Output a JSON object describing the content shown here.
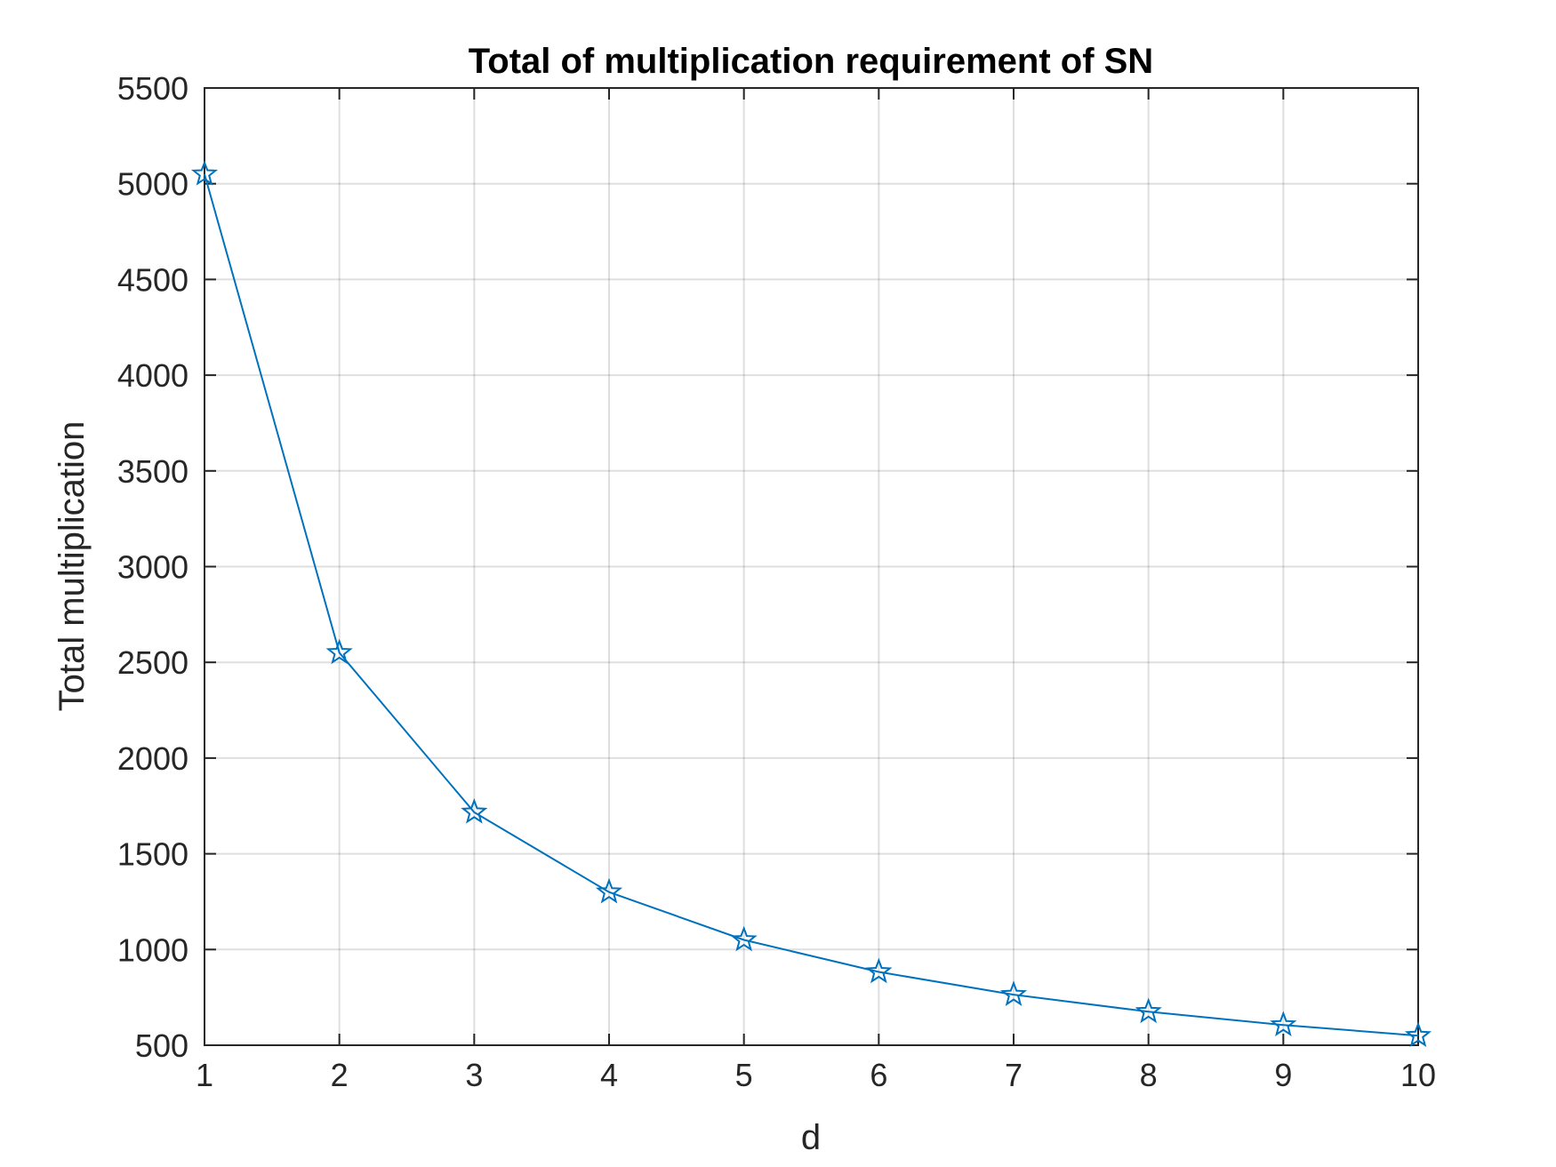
{
  "chart_data": {
    "type": "line",
    "title": "Total of multiplication requirement of SN",
    "xlabel": "d",
    "ylabel": "Total multiplication",
    "xlim": [
      1,
      10
    ],
    "ylim": [
      500,
      5500
    ],
    "xticks": [
      "1",
      "2",
      "3",
      "4",
      "5",
      "6",
      "7",
      "8",
      "9",
      "10"
    ],
    "yticks": [
      "500",
      "1000",
      "1500",
      "2000",
      "2500",
      "3000",
      "3500",
      "4000",
      "4500",
      "5000",
      "5500"
    ],
    "grid": true,
    "marker": "star",
    "color": "#0072bd",
    "x": [
      1,
      2,
      3,
      4,
      5,
      6,
      7,
      8,
      9,
      10
    ],
    "series": [
      {
        "values": [
          5050,
          2550,
          1717,
          1300,
          1050,
          883,
          764,
          675,
          606,
          550
        ]
      }
    ]
  }
}
